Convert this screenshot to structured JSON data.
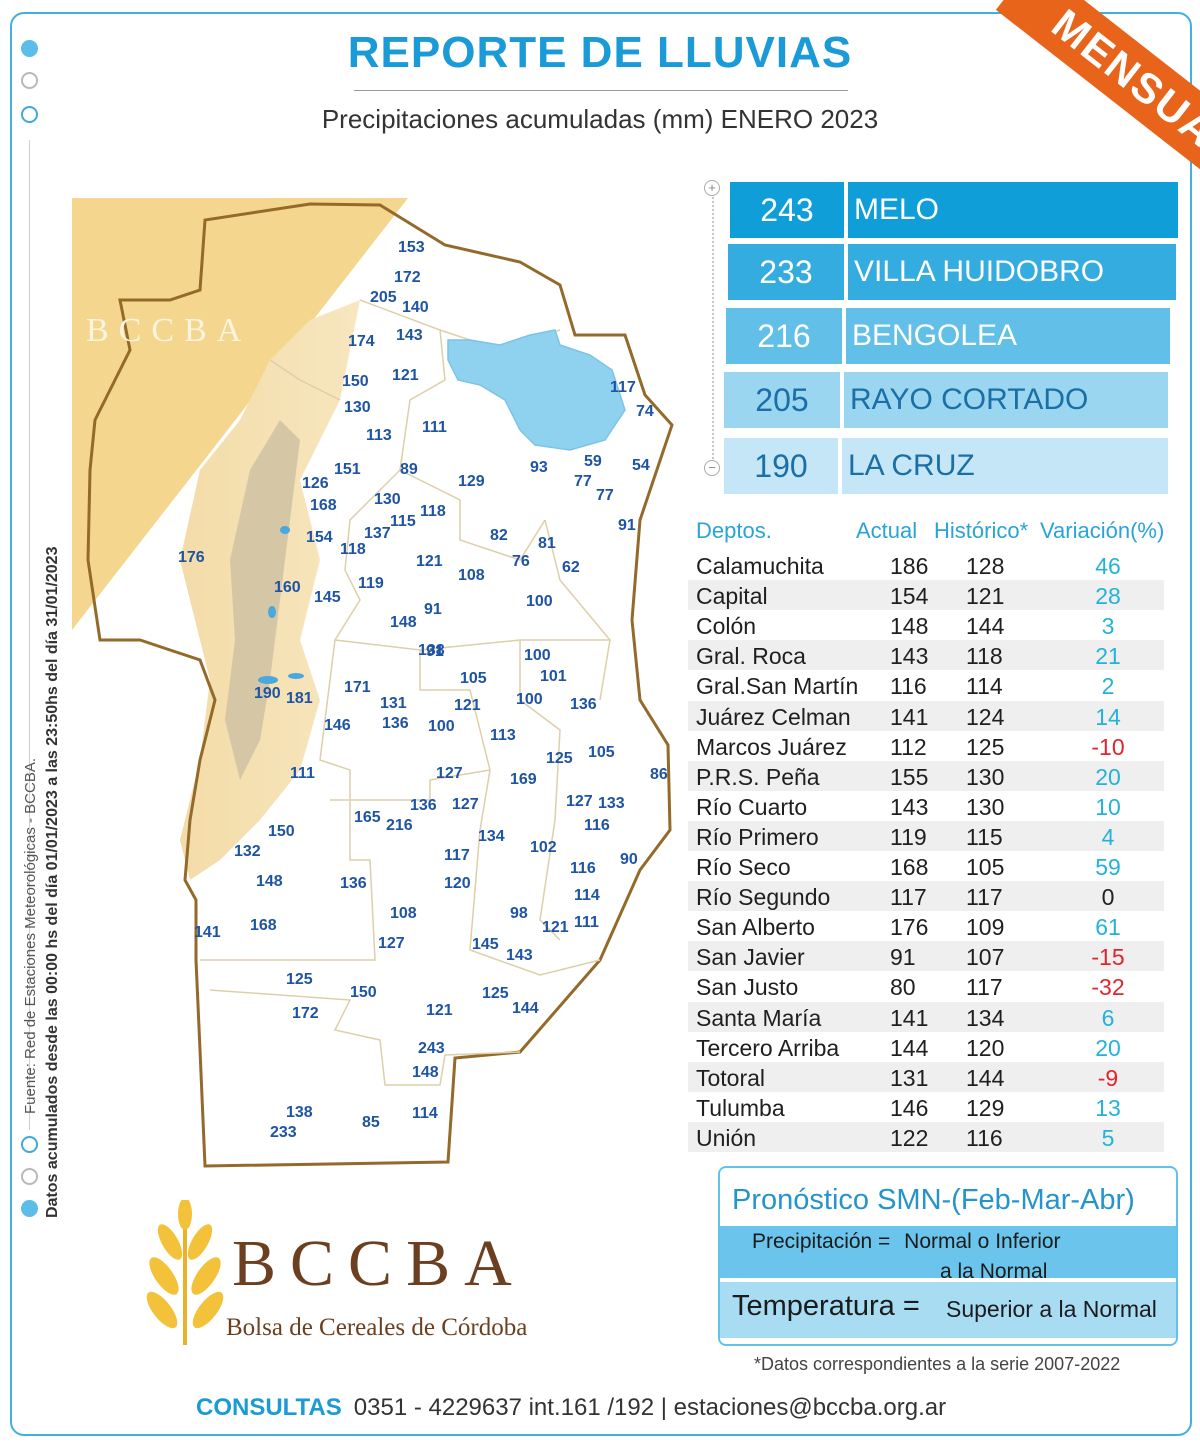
{
  "header": {
    "title": "REPORTE DE LLUVIAS",
    "subtitle": "Precipitaciones acumuladas (mm) ENERO 2023",
    "ribbon": "MENSUAL"
  },
  "side_notes": {
    "source": "Fuente: Red de Estaciones Meteorológicas - BCCBA.",
    "period": "Datos acumulados desde las 00:00 hs del día 01/01/2023 a las 23:50hs del día 31/01/2023"
  },
  "watermark_text": "BCCBA",
  "map_values": [
    "153",
    "172",
    "205",
    "140",
    "143",
    "174",
    "121",
    "150",
    "130",
    "113",
    "111",
    "117",
    "74",
    "126",
    "151",
    "89",
    "129",
    "93",
    "59",
    "54",
    "168",
    "130",
    "118",
    "77",
    "77",
    "154",
    "137",
    "115",
    "82",
    "81",
    "91",
    "118",
    "121",
    "76",
    "62",
    "176",
    "160",
    "119",
    "108",
    "145",
    "91",
    "100",
    "148",
    "91",
    "138",
    "100",
    "105",
    "101",
    "171",
    "190",
    "181",
    "131",
    "121",
    "100",
    "136",
    "136",
    "100",
    "113",
    "146",
    "111",
    "127",
    "125",
    "105",
    "169",
    "86",
    "165",
    "216",
    "136",
    "127",
    "127",
    "133",
    "150",
    "134",
    "102",
    "116",
    "132",
    "117",
    "116",
    "90",
    "148",
    "136",
    "120",
    "114",
    "108",
    "98",
    "121",
    "111",
    "141",
    "168",
    "127",
    "145",
    "143",
    "125",
    "150",
    "125",
    "144",
    "172",
    "121",
    "243",
    "148",
    "138",
    "85",
    "114",
    "233"
  ],
  "top_stations": [
    {
      "value": "243",
      "name": "MELO",
      "color": "#109ed8"
    },
    {
      "value": "233",
      "name": "VILLA HUIDOBRO",
      "color": "#34ace0"
    },
    {
      "value": "216",
      "name": "BENGOLEA",
      "color": "#62bfe8"
    },
    {
      "value": "205",
      "name": "RAYO CORTADO",
      "color": "#9bd6f1"
    },
    {
      "value": "190",
      "name": "LA CRUZ",
      "color": "#c4e6f6"
    }
  ],
  "table": {
    "headers": {
      "dept": "Deptos.",
      "actual": "Actual",
      "historic": "Histórico*",
      "variation": "Variación(%)"
    },
    "rows": [
      {
        "dept": "Calamuchita",
        "actual": "186",
        "historic": "128",
        "variation": "46"
      },
      {
        "dept": "Capital",
        "actual": "154",
        "historic": "121",
        "variation": "28"
      },
      {
        "dept": "Colón",
        "actual": "148",
        "historic": "144",
        "variation": "3"
      },
      {
        "dept": "Gral. Roca",
        "actual": "143",
        "historic": "118",
        "variation": "21"
      },
      {
        "dept": "Gral.San Martín",
        "actual": "116",
        "historic": "114",
        "variation": "2"
      },
      {
        "dept": "Juárez Celman",
        "actual": "141",
        "historic": "124",
        "variation": "14"
      },
      {
        "dept": "Marcos Juárez",
        "actual": "112",
        "historic": "125",
        "variation": "-10"
      },
      {
        "dept": "P.R.S. Peña",
        "actual": "155",
        "historic": "130",
        "variation": "20"
      },
      {
        "dept": "Río Cuarto",
        "actual": "143",
        "historic": "130",
        "variation": "10"
      },
      {
        "dept": "Río Primero",
        "actual": "119",
        "historic": "115",
        "variation": "4"
      },
      {
        "dept": "Río Seco",
        "actual": "168",
        "historic": "105",
        "variation": "59"
      },
      {
        "dept": "Río Segundo",
        "actual": "117",
        "historic": "117",
        "variation": "0"
      },
      {
        "dept": "San Alberto",
        "actual": "176",
        "historic": "109",
        "variation": "61"
      },
      {
        "dept": "San Javier",
        "actual": "91",
        "historic": "107",
        "variation": "-15"
      },
      {
        "dept": "San Justo",
        "actual": "80",
        "historic": "117",
        "variation": "-32"
      },
      {
        "dept": "Santa María",
        "actual": "141",
        "historic": "134",
        "variation": "6"
      },
      {
        "dept": "Tercero Arriba",
        "actual": "144",
        "historic": "120",
        "variation": "20"
      },
      {
        "dept": "Totoral",
        "actual": "131",
        "historic": "144",
        "variation": "-9"
      },
      {
        "dept": "Tulumba",
        "actual": "146",
        "historic": "129",
        "variation": "13"
      },
      {
        "dept": "Unión",
        "actual": "122",
        "historic": "116",
        "variation": "5"
      }
    ],
    "colors": {
      "positive": "#23b3d8",
      "negative": "#e5232a",
      "zero": "#222222"
    }
  },
  "forecast": {
    "title": "Pronóstico SMN-(Feb-Mar-Abr)",
    "precip_label": "Precipitación =",
    "precip_value_line1": "Normal o Inferior",
    "precip_value_line2": "a la Normal",
    "temp_label": "Temperatura =",
    "temp_value": "Superior a la Normal"
  },
  "footnote": "*Datos  correspondientes a la serie 2007-2022",
  "logo": {
    "text": "BCCBA",
    "subtitle": "Bolsa de Cereales de Córdoba"
  },
  "contact": {
    "label": "CONSULTAS",
    "text": "0351 - 4229637 int.161 /192 | estaciones@bccba.org.ar"
  }
}
